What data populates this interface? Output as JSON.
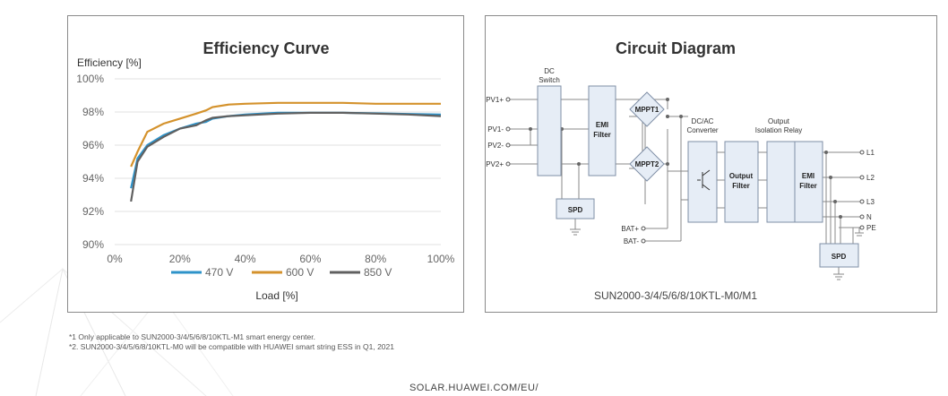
{
  "efficiency_panel": {
    "title": "Efficiency Curve",
    "legend_items": [
      {
        "label": "470 V",
        "color": "#2e93c9"
      },
      {
        "label": "600 V",
        "color": "#d4922c"
      },
      {
        "label": "850 V",
        "color": "#606060"
      }
    ]
  },
  "chart_data": {
    "type": "line",
    "title": "Efficiency Curve",
    "ylabel": "Efficiency [%]",
    "xlabel": "Load [%]",
    "x_ticks": [
      "0%",
      "20%",
      "40%",
      "60%",
      "80%",
      "100%"
    ],
    "y_ticks": [
      "90%",
      "92%",
      "94%",
      "96%",
      "98%",
      "100%"
    ],
    "xlim": [
      0,
      100
    ],
    "ylim": [
      90,
      100
    ],
    "grid": "horizontal",
    "legend_position": "bottom",
    "series": [
      {
        "name": "470 V",
        "color": "#2e93c9",
        "points": [
          [
            5,
            93.4
          ],
          [
            7,
            95.2
          ],
          [
            10,
            96.0
          ],
          [
            15,
            96.6
          ],
          [
            20,
            97.0
          ],
          [
            25,
            97.3
          ],
          [
            28,
            97.4
          ],
          [
            30,
            97.6
          ],
          [
            35,
            97.75
          ],
          [
            40,
            97.85
          ],
          [
            50,
            97.95
          ],
          [
            60,
            97.95
          ],
          [
            70,
            97.95
          ],
          [
            80,
            97.92
          ],
          [
            90,
            97.88
          ],
          [
            100,
            97.85
          ]
        ]
      },
      {
        "name": "600 V",
        "color": "#d4922c",
        "points": [
          [
            5,
            94.7
          ],
          [
            7,
            95.6
          ],
          [
            10,
            96.8
          ],
          [
            15,
            97.3
          ],
          [
            20,
            97.6
          ],
          [
            25,
            97.9
          ],
          [
            28,
            98.1
          ],
          [
            30,
            98.3
          ],
          [
            35,
            98.45
          ],
          [
            40,
            98.5
          ],
          [
            50,
            98.55
          ],
          [
            60,
            98.55
          ],
          [
            70,
            98.55
          ],
          [
            80,
            98.5
          ],
          [
            90,
            98.5
          ],
          [
            100,
            98.5
          ]
        ]
      },
      {
        "name": "850 V",
        "color": "#606060",
        "points": [
          [
            5,
            92.6
          ],
          [
            7,
            95.0
          ],
          [
            10,
            95.9
          ],
          [
            15,
            96.5
          ],
          [
            20,
            97.0
          ],
          [
            25,
            97.2
          ],
          [
            28,
            97.5
          ],
          [
            30,
            97.65
          ],
          [
            35,
            97.75
          ],
          [
            40,
            97.8
          ],
          [
            50,
            97.9
          ],
          [
            60,
            97.95
          ],
          [
            70,
            97.95
          ],
          [
            80,
            97.9
          ],
          [
            90,
            97.85
          ],
          [
            100,
            97.75
          ]
        ]
      }
    ]
  },
  "circuit_panel": {
    "title": "Circuit Diagram",
    "caption": "SUN2000-3/4/5/6/8/10KTL-M0/M1",
    "inputs": [
      "PV1+",
      "PV1-",
      "PV2-",
      "PV2+"
    ],
    "battery": [
      "BAT+",
      "BAT-"
    ],
    "outputs": [
      "L1",
      "L2",
      "L3",
      "N",
      "PE"
    ],
    "dc_switch": [
      "DC",
      "Switch"
    ],
    "emi_filter_in": [
      "EMI",
      "Filter"
    ],
    "mppt1": "MPPT1",
    "mppt2": "MPPT2",
    "dcac_label": [
      "DC/AC",
      "Converter"
    ],
    "output_filter": [
      "Output",
      "Filter"
    ],
    "relay_label": [
      "Output",
      "Isolation Relay"
    ],
    "emi_filter_out": [
      "EMI",
      "Filter"
    ],
    "spd": "SPD"
  },
  "footnotes": [
    "*1 Only applicable to SUN2000-3/4/5/6/8/10KTL-M1 smart energy center.",
    "*2. SUN2000-3/4/5/6/8/10KTL-M0 will be compatible with HUAWEI smart string ESS in Q1, 2021"
  ],
  "footer_url": "SOLAR.HUAWEI.COM/EU/"
}
